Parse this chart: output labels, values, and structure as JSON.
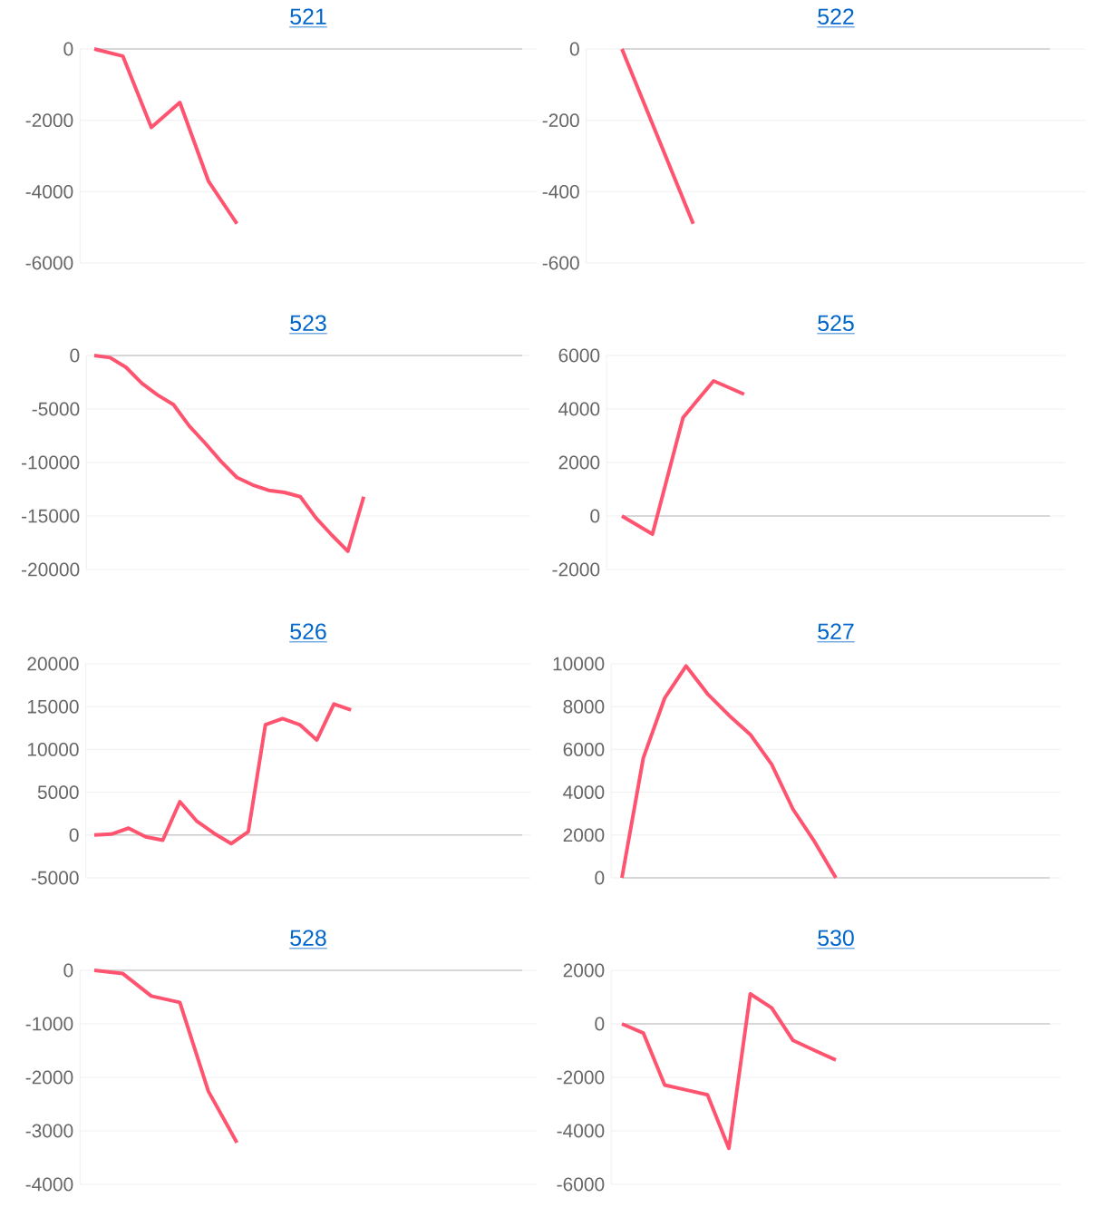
{
  "chart_data": [
    {
      "type": "line",
      "title": "521",
      "color": "#ff5470",
      "grid": "y",
      "tick_labels": "y",
      "ylim": [
        -6000,
        0
      ],
      "yticks": [
        -6000,
        -4000,
        -2000,
        0
      ],
      "categories": [
        null,
        null,
        null,
        null,
        null,
        null,
        null,
        null,
        null,
        null,
        null,
        null,
        null,
        null,
        null,
        null
      ],
      "values": [
        0,
        -200,
        -2200,
        -1500,
        -3700,
        -4900,
        null,
        null,
        null,
        null,
        null,
        null,
        null,
        null,
        null,
        null
      ]
    },
    {
      "type": "line",
      "title": "522",
      "color": "#ff5470",
      "grid": "y",
      "tick_labels": "y",
      "ylim": [
        -600,
        0
      ],
      "yticks": [
        -600,
        -400,
        -200,
        0
      ],
      "categories": [
        null,
        null,
        null,
        null,
        null,
        null,
        null
      ],
      "values": [
        0,
        -490,
        null,
        null,
        null,
        null,
        null
      ]
    },
    {
      "type": "line",
      "title": "523",
      "color": "#ff5470",
      "grid": "y",
      "tick_labels": "y",
      "ylim": [
        -20000,
        0
      ],
      "yticks": [
        -20000,
        -15000,
        -10000,
        -5000,
        0
      ],
      "categories": [
        null,
        null,
        null,
        null,
        null,
        null,
        null,
        null,
        null,
        null,
        null,
        null,
        null,
        null,
        null,
        null,
        null,
        null,
        null,
        null,
        null,
        null,
        null,
        null,
        null,
        null,
        null,
        null
      ],
      "values": [
        0,
        -200,
        -1100,
        -2600,
        -3700,
        -4600,
        -6600,
        -8200,
        -9900,
        -11400,
        -12100,
        -12600,
        -12800,
        -13200,
        -15200,
        -16800,
        -18300,
        -13200,
        null,
        null,
        null,
        null,
        null,
        null,
        null,
        null,
        null,
        null
      ]
    },
    {
      "type": "line",
      "title": "525",
      "color": "#ff5470",
      "grid": "y",
      "tick_labels": "y",
      "ylim": [
        -2000,
        6000
      ],
      "yticks": [
        -2000,
        0,
        2000,
        4000,
        6000
      ],
      "categories": [
        null,
        null,
        null,
        null,
        null,
        null,
        null,
        null,
        null,
        null,
        null,
        null,
        null,
        null,
        null
      ],
      "values": [
        0,
        -680,
        3680,
        5050,
        4550,
        null,
        null,
        null,
        null,
        null,
        null,
        null,
        null,
        null,
        null
      ]
    },
    {
      "type": "line",
      "title": "526",
      "color": "#ff5470",
      "grid": "y",
      "tick_labels": "y",
      "ylim": [
        -5000,
        20000
      ],
      "yticks": [
        -5000,
        0,
        5000,
        10000,
        15000,
        20000
      ],
      "categories": [
        null,
        null,
        null,
        null,
        null,
        null,
        null,
        null,
        null,
        null,
        null,
        null,
        null,
        null,
        null,
        null,
        null,
        null,
        null,
        null,
        null,
        null,
        null,
        null,
        null,
        null
      ],
      "values": [
        0,
        100,
        800,
        -200,
        -600,
        3900,
        1600,
        200,
        -1000,
        400,
        12900,
        13600,
        12900,
        11100,
        15300,
        14600,
        null,
        null,
        null,
        null,
        null,
        null,
        null,
        null,
        null,
        null
      ]
    },
    {
      "type": "line",
      "title": "527",
      "color": "#ff5470",
      "grid": "y",
      "tick_labels": "y",
      "ylim": [
        0,
        10000
      ],
      "yticks": [
        0,
        2000,
        4000,
        6000,
        8000,
        10000
      ],
      "categories": [
        null,
        null,
        null,
        null,
        null,
        null,
        null,
        null,
        null,
        null,
        null,
        null,
        null,
        null,
        null,
        null,
        null,
        null,
        null,
        null,
        null
      ],
      "values": [
        0,
        5600,
        8400,
        9900,
        8600,
        7600,
        6700,
        5300,
        3200,
        1700,
        0,
        null,
        null,
        null,
        null,
        null,
        null,
        null,
        null,
        null,
        null
      ]
    },
    {
      "type": "line",
      "title": "528",
      "color": "#ff5470",
      "grid": "y",
      "tick_labels": "y",
      "ylim": [
        -4000,
        0
      ],
      "yticks": [
        -4000,
        -3000,
        -2000,
        -1000,
        0
      ],
      "categories": [
        null,
        null,
        null,
        null,
        null,
        null,
        null,
        null,
        null,
        null,
        null,
        null,
        null,
        null,
        null,
        null
      ],
      "values": [
        0,
        -60,
        -480,
        -600,
        -2260,
        -3220,
        null,
        null,
        null,
        null,
        null,
        null,
        null,
        null,
        null,
        null
      ]
    },
    {
      "type": "line",
      "title": "530",
      "color": "#ff5470",
      "grid": "y",
      "tick_labels": "y",
      "ylim": [
        -6000,
        2000
      ],
      "yticks": [
        -6000,
        -4000,
        -2000,
        0,
        2000
      ],
      "categories": [
        null,
        null,
        null,
        null,
        null,
        null,
        null,
        null,
        null,
        null,
        null,
        null,
        null,
        null,
        null,
        null,
        null,
        null,
        null,
        null,
        null
      ],
      "values": [
        0,
        -340,
        -2290,
        -2470,
        -2650,
        -4650,
        1120,
        600,
        -620,
        -990,
        -1350,
        null,
        null,
        null,
        null,
        null,
        null,
        null,
        null,
        null,
        null
      ]
    }
  ]
}
